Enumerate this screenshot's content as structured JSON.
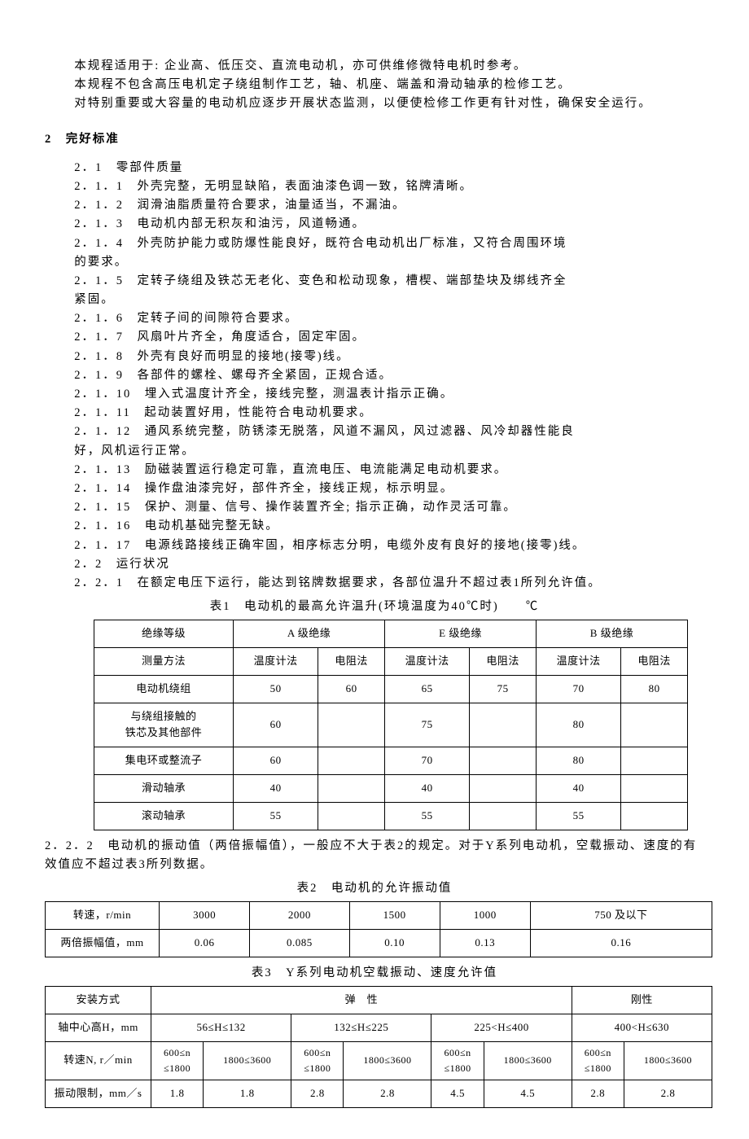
{
  "intro": {
    "p1": "本规程适用于: 企业高、低压交、直流电动机，亦可供维修微特电机时参考。",
    "p2": "本规程不包含高压电机定子绕组制作工艺，轴、机座、端盖和滑动轴承的检修工艺。",
    "p3": "对特别重要或大容量的电动机应逐步开展状态监测，以便使检修工作更有针对性，确保安全运行。"
  },
  "section2": {
    "header": "2　完好标准",
    "s2_1": {
      "header": "2．1　零部件质量",
      "items": [
        "2．1．1　外壳完整，无明显缺陷，表面油漆色调一致，铭牌清晰。",
        "2．1．2　润滑油脂质量符合要求，油量适当，不漏油。",
        "2．1．3　电动机内部无积灰和油污，风道畅通。",
        "2．1．4　外壳防护能力或防爆性能良好，既符合电动机出厂标准，又符合周围环境的要求。",
        "2．1．5　定转子绕组及铁芯无老化、变色和松动现象，槽楔、端部垫块及绑线齐全紧固。",
        "2．1．6　定转子间的间隙符合要求。",
        "2．1．7　风扇叶片齐全，角度适合，固定牢固。",
        "2．1．8　外壳有良好而明显的接地(接零)线。",
        "2．1．9　各部件的螺栓、螺母齐全紧固，正规合适。",
        "2．1．10　埋入式温度计齐全，接线完整，测温表计指示正确。",
        "2．1．11　起动装置好用，性能符合电动机要求。",
        "2．1．12　通风系统完整，防锈漆无脱落，风道不漏风，风过滤器、风冷却器性能良好，风机运行正常。",
        "2．1．13　励磁装置运行稳定可靠，直流电压、电流能满足电动机要求。",
        "2．1．14　操作盘油漆完好，部件齐全，接线正规，标示明显。",
        "2．1．15　保护、测量、信号、操作装置齐全; 指示正确，动作灵活可靠。",
        "2．1．16　电动机基础完整无缺。",
        "2．1．17　电源线路接线正确牢固，相序标志分明，电缆外皮有良好的接地(接零)线。"
      ]
    },
    "s2_2": {
      "header": "2．2　运行状况",
      "p1": "2．2．1　在额定电压下运行，能达到铭牌数据要求，各部位温升不超过表1所列允许值。",
      "p2": "2．2．2　电动机的振动值（两倍振幅值），一般应不大于表2的规定。对于Y系列电动机，空载振动、速度的有效值应不超过表3所列数据。"
    }
  },
  "table1": {
    "title": "表1　电动机的最高允许温升(环境温度为40℃时)　　℃",
    "headers": {
      "c1": "绝缘等级",
      "c2": "A 级绝缘",
      "c3": "E 级绝缘",
      "c4": "B 级绝缘"
    },
    "subheaders": {
      "c1": "测量方法",
      "a1": "温度计法",
      "a2": "电阻法"
    },
    "rows": [
      {
        "label": "电动机绕组",
        "v": [
          "50",
          "60",
          "65",
          "75",
          "70",
          "80"
        ]
      },
      {
        "label": "与绕组接触的铁芯及其他部件",
        "v": [
          "60",
          "",
          "75",
          "",
          "80",
          ""
        ]
      },
      {
        "label": "集电环或整流子",
        "v": [
          "60",
          "",
          "70",
          "",
          "80",
          ""
        ]
      },
      {
        "label": "滑动轴承",
        "v": [
          "40",
          "",
          "40",
          "",
          "40",
          ""
        ]
      },
      {
        "label": "滚动轴承",
        "v": [
          "55",
          "",
          "55",
          "",
          "55",
          ""
        ]
      }
    ]
  },
  "table2": {
    "title": "表2　电动机的允许振动值",
    "headers": [
      "转速，r/min",
      "3000",
      "2000",
      "1500",
      "1000",
      "750 及以下"
    ],
    "row": [
      "两倍振幅值，mm",
      "0.06",
      "0.085",
      "0.10",
      "0.13",
      "0.16"
    ]
  },
  "table3": {
    "title": "表3　Y系列电动机空载振动、速度允许值",
    "r1": {
      "c1": "安装方式",
      "c2": "弹　性",
      "c3": "刚性"
    },
    "r2": {
      "c1": "轴中心高H，mm",
      "v": [
        "56≤H≤132",
        "132≤H≤225",
        "225<H≤400",
        "400<H≤630"
      ]
    },
    "r3": {
      "c1": "转速N, r／min",
      "v": [
        "600≤n≤1800",
        "1800<n≤3600",
        "600≤n≤1800",
        "1800<n≤3600",
        "600≤n≤1800",
        "1800<n≤3600",
        "600≤n≤1800",
        "1800<n≤3600"
      ]
    },
    "r4": {
      "c1": "振动限制，mm／s",
      "v": [
        "1.8",
        "1.8",
        "2.8",
        "2.8",
        "4.5",
        "4.5",
        "2.8",
        "2.8"
      ]
    }
  }
}
